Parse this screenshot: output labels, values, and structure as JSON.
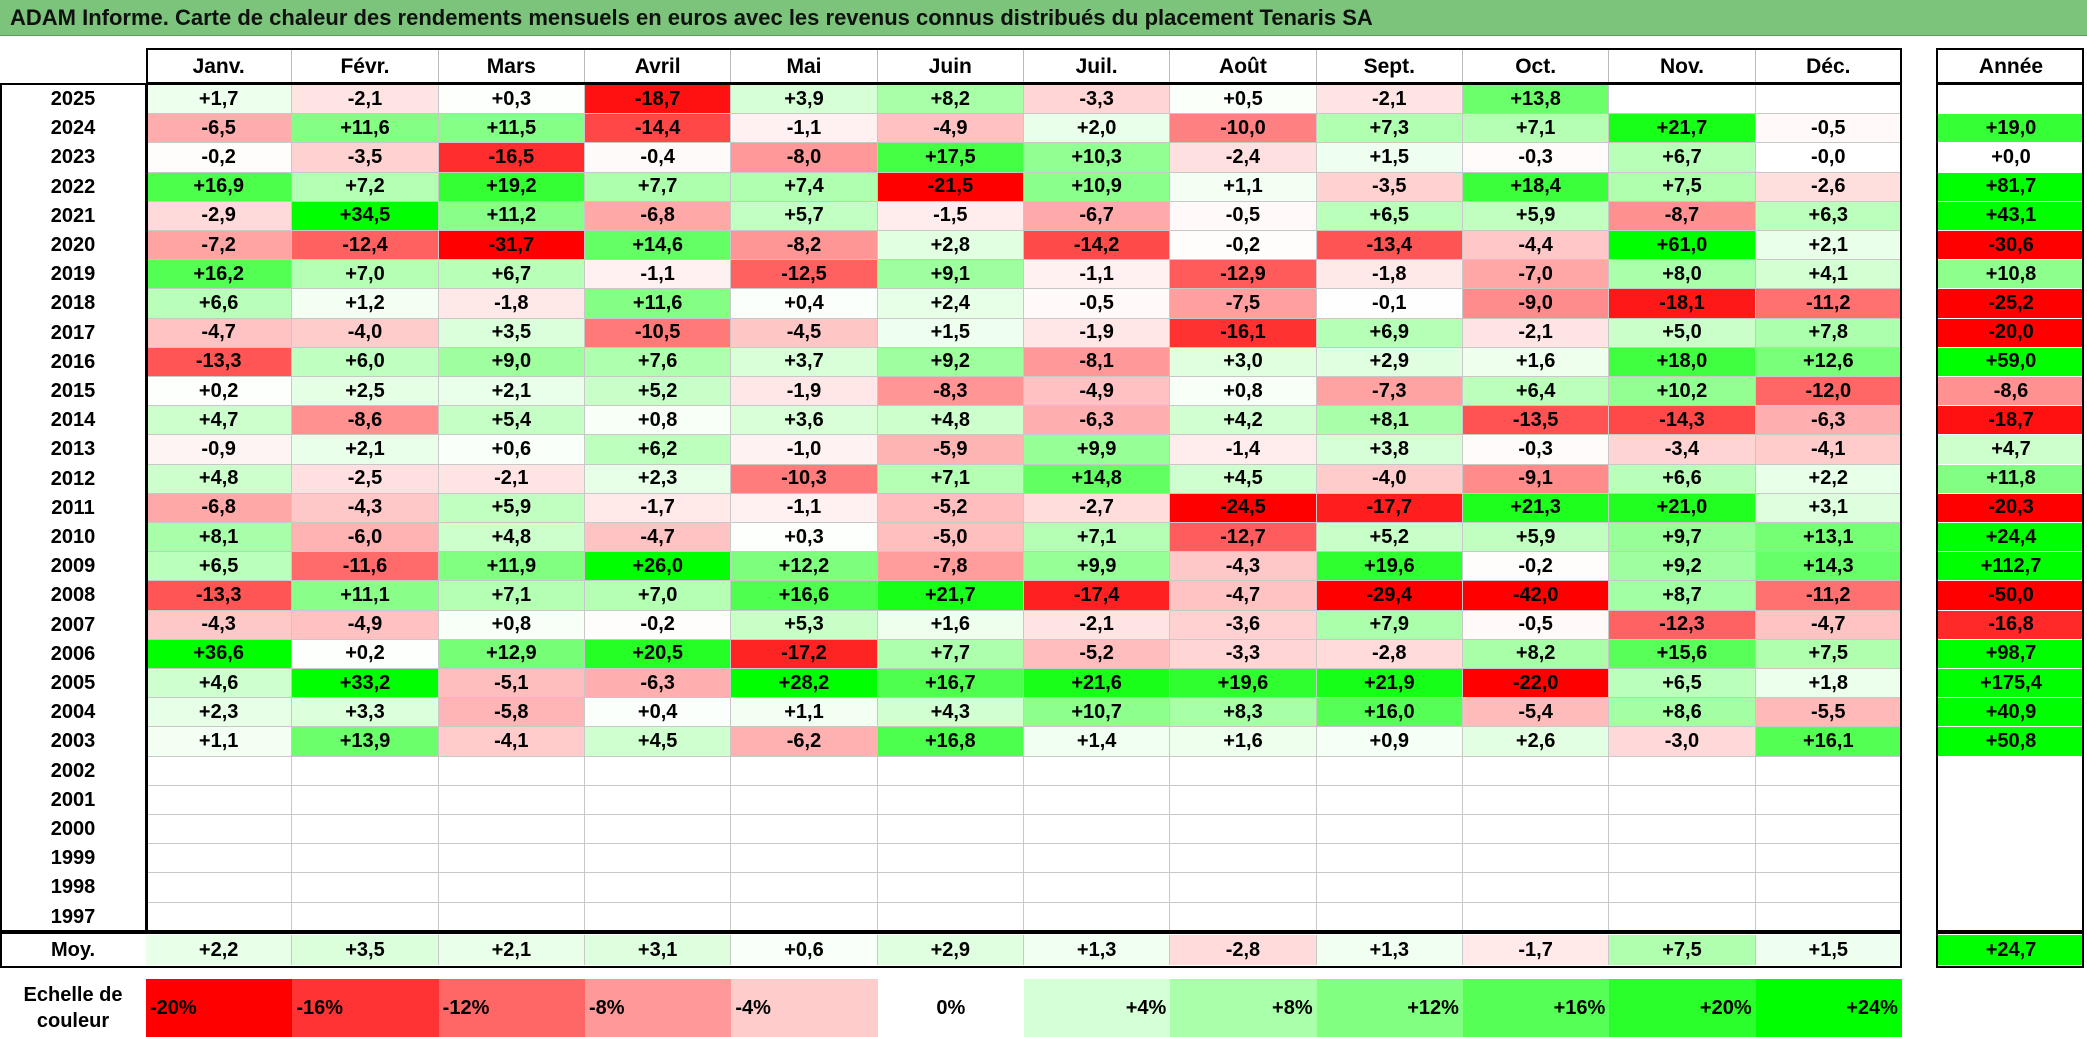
{
  "title": "ADAM Informe. Carte de chaleur des rendements mensuels en euros avec les revenus connus distribués du placement Tenaris SA",
  "chart_data": {
    "type": "heatmap",
    "title": "ADAM Informe. Carte de chaleur des rendements mensuels en euros avec les revenus connus distribués du placement Tenaris SA",
    "columns": [
      "Janv.",
      "Févr.",
      "Mars",
      "Avril",
      "Mai",
      "Juin",
      "Juil.",
      "Août",
      "Sept.",
      "Oct.",
      "Nov.",
      "Déc."
    ],
    "annual_header": "Année",
    "rows": [
      {
        "year": "2025",
        "values": [
          "+1,7",
          "-2,1",
          "+0,3",
          "-18,7",
          "+3,9",
          "+8,2",
          "-3,3",
          "+0,5",
          "-2,1",
          "+13,8",
          "",
          ""
        ],
        "annual": ""
      },
      {
        "year": "2024",
        "values": [
          "-6,5",
          "+11,6",
          "+11,5",
          "-14,4",
          "-1,1",
          "-4,9",
          "+2,0",
          "-10,0",
          "+7,3",
          "+7,1",
          "+21,7",
          "-0,5"
        ],
        "annual": "+19,0"
      },
      {
        "year": "2023",
        "values": [
          "-0,2",
          "-3,5",
          "-16,5",
          "-0,4",
          "-8,0",
          "+17,5",
          "+10,3",
          "-2,4",
          "+1,5",
          "-0,3",
          "+6,7",
          "-0,0"
        ],
        "annual": "+0,0"
      },
      {
        "year": "2022",
        "values": [
          "+16,9",
          "+7,2",
          "+19,2",
          "+7,7",
          "+7,4",
          "-21,5",
          "+10,9",
          "+1,1",
          "-3,5",
          "+18,4",
          "+7,5",
          "-2,6"
        ],
        "annual": "+81,7"
      },
      {
        "year": "2021",
        "values": [
          "-2,9",
          "+34,5",
          "+11,2",
          "-6,8",
          "+5,7",
          "-1,5",
          "-6,7",
          "-0,5",
          "+6,5",
          "+5,9",
          "-8,7",
          "+6,3"
        ],
        "annual": "+43,1"
      },
      {
        "year": "2020",
        "values": [
          "-7,2",
          "-12,4",
          "-31,7",
          "+14,6",
          "-8,2",
          "+2,8",
          "-14,2",
          "-0,2",
          "-13,4",
          "-4,4",
          "+61,0",
          "+2,1"
        ],
        "annual": "-30,6"
      },
      {
        "year": "2019",
        "values": [
          "+16,2",
          "+7,0",
          "+6,7",
          "-1,1",
          "-12,5",
          "+9,1",
          "-1,1",
          "-12,9",
          "-1,8",
          "-7,0",
          "+8,0",
          "+4,1"
        ],
        "annual": "+10,8"
      },
      {
        "year": "2018",
        "values": [
          "+6,6",
          "+1,2",
          "-1,8",
          "+11,6",
          "+0,4",
          "+2,4",
          "-0,5",
          "-7,5",
          "-0,1",
          "-9,0",
          "-18,1",
          "-11,2"
        ],
        "annual": "-25,2"
      },
      {
        "year": "2017",
        "values": [
          "-4,7",
          "-4,0",
          "+3,5",
          "-10,5",
          "-4,5",
          "+1,5",
          "-1,9",
          "-16,1",
          "+6,9",
          "-2,1",
          "+5,0",
          "+7,8"
        ],
        "annual": "-20,0"
      },
      {
        "year": "2016",
        "values": [
          "-13,3",
          "+6,0",
          "+9,0",
          "+7,6",
          "+3,7",
          "+9,2",
          "-8,1",
          "+3,0",
          "+2,9",
          "+1,6",
          "+18,0",
          "+12,6"
        ],
        "annual": "+59,0"
      },
      {
        "year": "2015",
        "values": [
          "+0,2",
          "+2,5",
          "+2,1",
          "+5,2",
          "-1,9",
          "-8,3",
          "-4,9",
          "+0,8",
          "-7,3",
          "+6,4",
          "+10,2",
          "-12,0"
        ],
        "annual": "-8,6"
      },
      {
        "year": "2014",
        "values": [
          "+4,7",
          "-8,6",
          "+5,4",
          "+0,8",
          "+3,6",
          "+4,8",
          "-6,3",
          "+4,2",
          "+8,1",
          "-13,5",
          "-14,3",
          "-6,3"
        ],
        "annual": "-18,7"
      },
      {
        "year": "2013",
        "values": [
          "-0,9",
          "+2,1",
          "+0,6",
          "+6,2",
          "-1,0",
          "-5,9",
          "+9,9",
          "-1,4",
          "+3,8",
          "-0,3",
          "-3,4",
          "-4,1"
        ],
        "annual": "+4,7"
      },
      {
        "year": "2012",
        "values": [
          "+4,8",
          "-2,5",
          "-2,1",
          "+2,3",
          "-10,3",
          "+7,1",
          "+14,8",
          "+4,5",
          "-4,0",
          "-9,1",
          "+6,6",
          "+2,2"
        ],
        "annual": "+11,8"
      },
      {
        "year": "2011",
        "values": [
          "-6,8",
          "-4,3",
          "+5,9",
          "-1,7",
          "-1,1",
          "-5,2",
          "-2,7",
          "-24,5",
          "-17,7",
          "+21,3",
          "+21,0",
          "+3,1"
        ],
        "annual": "-20,3"
      },
      {
        "year": "2010",
        "values": [
          "+8,1",
          "-6,0",
          "+4,8",
          "-4,7",
          "+0,3",
          "-5,0",
          "+7,1",
          "-12,7",
          "+5,2",
          "+5,9",
          "+9,7",
          "+13,1"
        ],
        "annual": "+24,4"
      },
      {
        "year": "2009",
        "values": [
          "+6,5",
          "-11,6",
          "+11,9",
          "+26,0",
          "+12,2",
          "-7,8",
          "+9,9",
          "-4,3",
          "+19,6",
          "-0,2",
          "+9,2",
          "+14,3"
        ],
        "annual": "+112,7"
      },
      {
        "year": "2008",
        "values": [
          "-13,3",
          "+11,1",
          "+7,1",
          "+7,0",
          "+16,6",
          "+21,7",
          "-17,4",
          "-4,7",
          "-29,4",
          "-42,0",
          "+8,7",
          "-11,2"
        ],
        "annual": "-50,0"
      },
      {
        "year": "2007",
        "values": [
          "-4,3",
          "-4,9",
          "+0,8",
          "-0,2",
          "+5,3",
          "+1,6",
          "-2,1",
          "-3,6",
          "+7,9",
          "-0,5",
          "-12,3",
          "-4,7"
        ],
        "annual": "-16,8"
      },
      {
        "year": "2006",
        "values": [
          "+36,6",
          "+0,2",
          "+12,9",
          "+20,5",
          "-17,2",
          "+7,7",
          "-5,2",
          "-3,3",
          "-2,8",
          "+8,2",
          "+15,6",
          "+7,5"
        ],
        "annual": "+98,7"
      },
      {
        "year": "2005",
        "values": [
          "+4,6",
          "+33,2",
          "-5,1",
          "-6,3",
          "+28,2",
          "+16,7",
          "+21,6",
          "+19,6",
          "+21,9",
          "-22,0",
          "+6,5",
          "+1,8"
        ],
        "annual": "+175,4"
      },
      {
        "year": "2004",
        "values": [
          "+2,3",
          "+3,3",
          "-5,8",
          "+0,4",
          "+1,1",
          "+4,3",
          "+10,7",
          "+8,3",
          "+16,0",
          "-5,4",
          "+8,6",
          "-5,5"
        ],
        "annual": "+40,9"
      },
      {
        "year": "2003",
        "values": [
          "+1,1",
          "+13,9",
          "-4,1",
          "+4,5",
          "-6,2",
          "+16,8",
          "+1,4",
          "+1,6",
          "+0,9",
          "+2,6",
          "-3,0",
          "+16,1"
        ],
        "annual": "+50,8"
      },
      {
        "year": "2002",
        "values": [
          "",
          "",
          "",
          "",
          "",
          "",
          "",
          "",
          "",
          "",
          "",
          ""
        ],
        "annual": ""
      },
      {
        "year": "2001",
        "values": [
          "",
          "",
          "",
          "",
          "",
          "",
          "",
          "",
          "",
          "",
          "",
          ""
        ],
        "annual": ""
      },
      {
        "year": "2000",
        "values": [
          "",
          "",
          "",
          "",
          "",
          "",
          "",
          "",
          "",
          "",
          "",
          ""
        ],
        "annual": ""
      },
      {
        "year": "1999",
        "values": [
          "",
          "",
          "",
          "",
          "",
          "",
          "",
          "",
          "",
          "",
          "",
          ""
        ],
        "annual": ""
      },
      {
        "year": "1998",
        "values": [
          "",
          "",
          "",
          "",
          "",
          "",
          "",
          "",
          "",
          "",
          "",
          ""
        ],
        "annual": ""
      },
      {
        "year": "1997",
        "values": [
          "",
          "",
          "",
          "",
          "",
          "",
          "",
          "",
          "",
          "",
          "",
          ""
        ],
        "annual": ""
      }
    ],
    "average": {
      "label": "Moy.",
      "values": [
        "+2,2",
        "+3,5",
        "+2,1",
        "+3,1",
        "+0,6",
        "+2,9",
        "+1,3",
        "-2,8",
        "+1,3",
        "-1,7",
        "+7,5",
        "+1,5"
      ],
      "annual": "+24,7"
    },
    "scale": {
      "label": "Echelle de couleur",
      "steps": [
        "-20%",
        "-16%",
        "-12%",
        "-8%",
        "-4%",
        "0%",
        "+4%",
        "+8%",
        "+12%",
        "+16%",
        "+20%",
        "+24%"
      ],
      "step_values": [
        -20,
        -16,
        -12,
        -8,
        -4,
        0,
        4,
        8,
        12,
        16,
        20,
        24
      ]
    },
    "colors": {
      "negative": "#ff0000",
      "neutral": "#ffffff",
      "positive": "#00ff00",
      "title_bar": "#7cc47c"
    }
  }
}
